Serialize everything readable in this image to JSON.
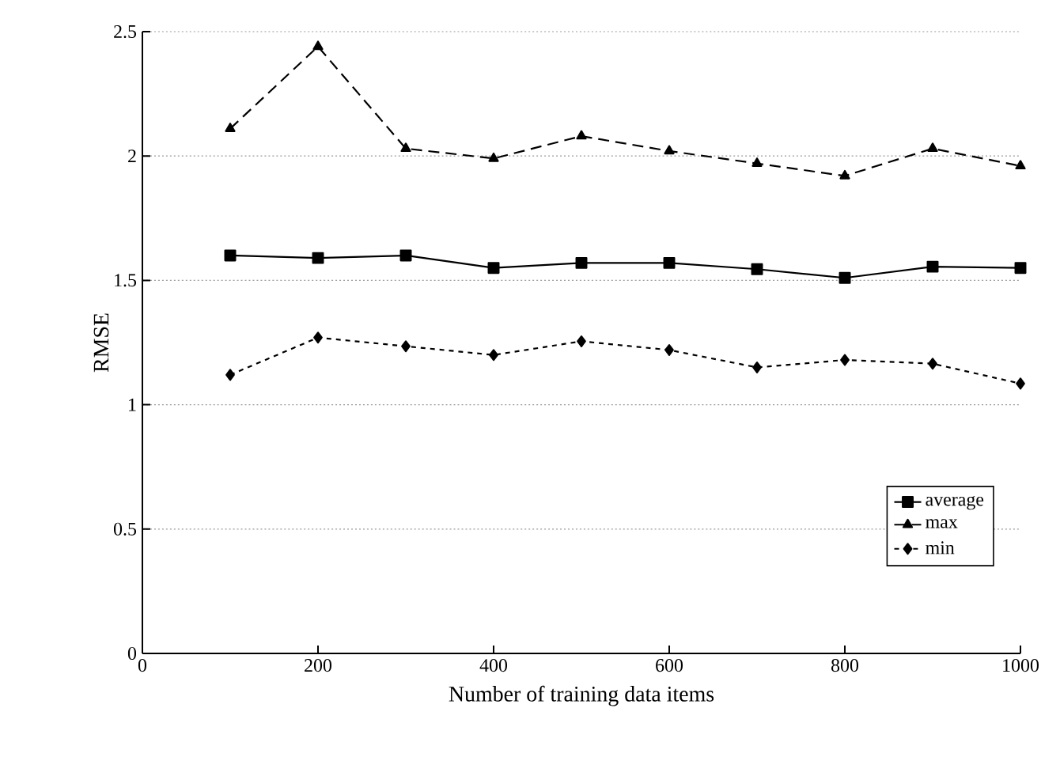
{
  "chart_data": {
    "type": "line",
    "xlabel": "Number of training data items",
    "ylabel": "RMSE",
    "x": [
      100,
      200,
      300,
      400,
      500,
      600,
      700,
      800,
      900,
      1000
    ],
    "series": [
      {
        "name": "average",
        "color": "#000000",
        "marker": "square",
        "line_style": "solid",
        "values": [
          1.6,
          1.59,
          1.6,
          1.55,
          1.57,
          1.57,
          1.545,
          1.51,
          1.555,
          1.55
        ]
      },
      {
        "name": "max",
        "color": "#000000",
        "marker": "triangle",
        "line_style": "dashed",
        "values": [
          2.11,
          2.44,
          2.03,
          1.99,
          2.08,
          2.02,
          1.97,
          1.92,
          2.03,
          1.96
        ]
      },
      {
        "name": "min",
        "color": "#000000",
        "marker": "diamond",
        "line_style": "dotted",
        "values": [
          1.12,
          1.27,
          1.235,
          1.2,
          1.255,
          1.22,
          1.15,
          1.18,
          1.165,
          1.085
        ]
      }
    ],
    "xlim": [
      0,
      1000
    ],
    "xticks": [
      0,
      200,
      400,
      600,
      800,
      1000
    ],
    "ylim": [
      0,
      2.5
    ],
    "yticks": [
      0,
      0.5,
      1,
      1.5,
      2,
      2.5
    ],
    "grid": "y",
    "legend": "bottom right"
  }
}
